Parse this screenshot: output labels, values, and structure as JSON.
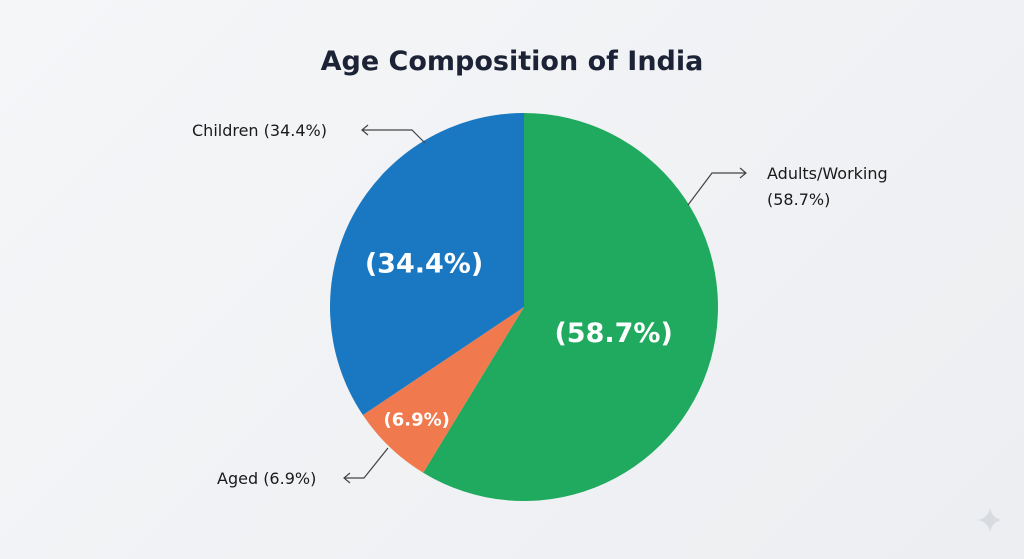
{
  "chart_data": {
    "type": "pie",
    "title": "Age Composition of India",
    "slices": [
      {
        "label": "Adults/Working",
        "value": 58.7,
        "color": "#1faa5f",
        "inner_label": "(58.7%)",
        "outer_label": [
          "Adults/Working",
          "(58.7%)"
        ]
      },
      {
        "label": "Aged",
        "value": 6.9,
        "color": "#f07a4e",
        "inner_label": "(6.9%)",
        "outer_label": [
          "Aged (6.9%)"
        ]
      },
      {
        "label": "Children",
        "value": 34.4,
        "color": "#1a78c2",
        "inner_label": "(34.4%)",
        "outer_label": [
          "Children (34.4%)"
        ]
      }
    ],
    "start": "top",
    "direction": "clockwise",
    "legend": "none"
  }
}
